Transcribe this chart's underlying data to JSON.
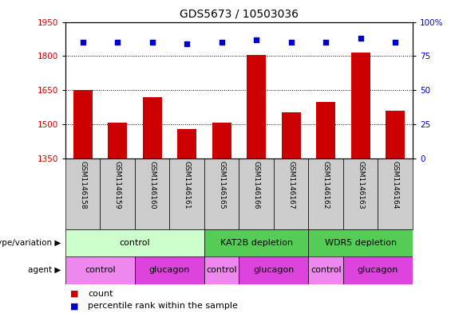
{
  "title": "GDS5673 / 10503036",
  "samples": [
    "GSM1146158",
    "GSM1146159",
    "GSM1146160",
    "GSM1146161",
    "GSM1146165",
    "GSM1146166",
    "GSM1146167",
    "GSM1146162",
    "GSM1146163",
    "GSM1146164"
  ],
  "counts": [
    1650,
    1510,
    1620,
    1480,
    1510,
    1805,
    1555,
    1600,
    1815,
    1560
  ],
  "percentiles": [
    85,
    85,
    85,
    84,
    85,
    87,
    85,
    85,
    88,
    85
  ],
  "ylim_left": [
    1350,
    1950
  ],
  "ylim_right": [
    0,
    100
  ],
  "yticks_left": [
    1350,
    1500,
    1650,
    1800,
    1950
  ],
  "yticks_right": [
    0,
    25,
    50,
    75,
    100
  ],
  "bar_color": "#cc0000",
  "dot_color": "#0000cc",
  "genotype_groups": [
    {
      "label": "control",
      "start": 0,
      "end": 4,
      "color": "#ccffcc"
    },
    {
      "label": "KAT2B depletion",
      "start": 4,
      "end": 7,
      "color": "#55cc55"
    },
    {
      "label": "WDR5 depletion",
      "start": 7,
      "end": 10,
      "color": "#55cc55"
    }
  ],
  "agent_groups": [
    {
      "label": "control",
      "start": 0,
      "end": 2,
      "color": "#ee88ee"
    },
    {
      "label": "glucagon",
      "start": 2,
      "end": 4,
      "color": "#dd44dd"
    },
    {
      "label": "control",
      "start": 4,
      "end": 5,
      "color": "#ee88ee"
    },
    {
      "label": "glucagon",
      "start": 5,
      "end": 7,
      "color": "#dd44dd"
    },
    {
      "label": "control",
      "start": 7,
      "end": 8,
      "color": "#ee88ee"
    },
    {
      "label": "glucagon",
      "start": 8,
      "end": 10,
      "color": "#dd44dd"
    }
  ],
  "title_fontsize": 10,
  "tick_fontsize": 7.5,
  "sample_fontsize": 6.5,
  "group_fontsize": 8,
  "legend_fontsize": 8,
  "left_tick_color": "#cc0000",
  "right_tick_color": "#0000cc",
  "bar_width": 0.55,
  "sample_box_color": "#cccccc",
  "dot_size": 22,
  "legend_marker_size": 8
}
